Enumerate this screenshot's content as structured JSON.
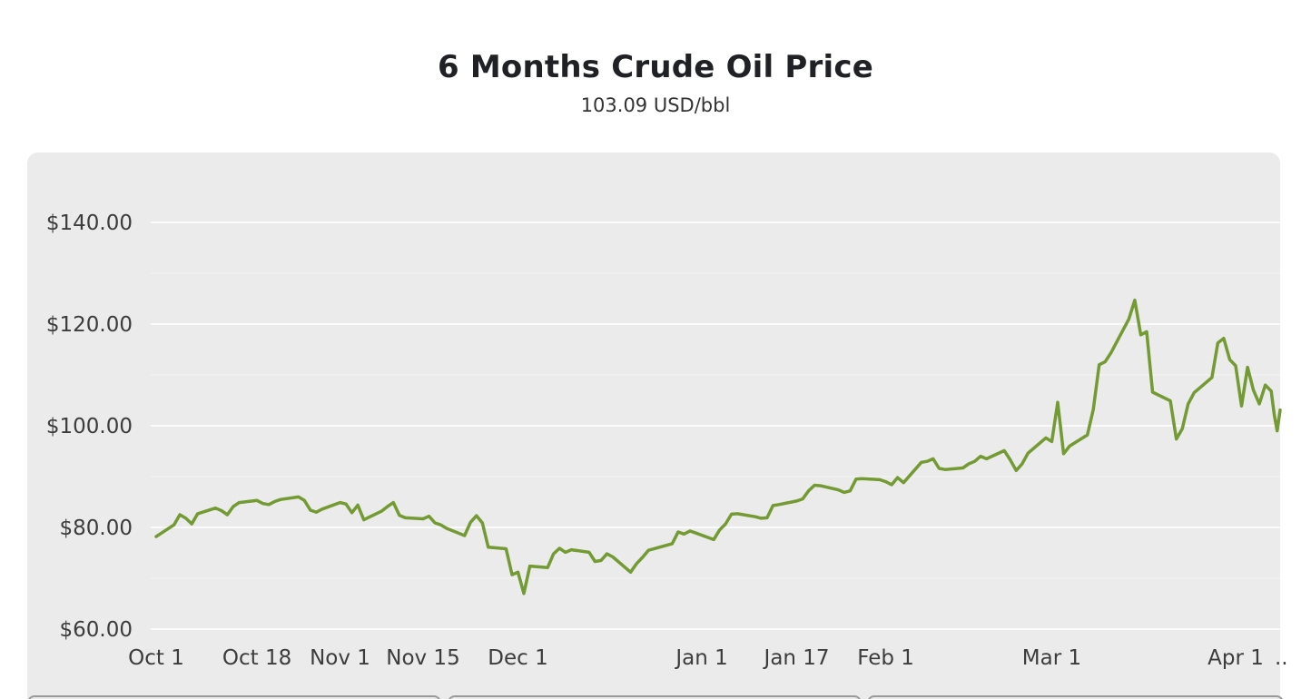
{
  "header": {
    "title": "6 Months Crude Oil Price",
    "subtitle": "103.09 USD/bbl"
  },
  "colors": {
    "line": "#739a33",
    "panel": "#ebebeb",
    "grid": "#ffffff"
  },
  "chart_data": {
    "type": "line",
    "title": "6 Months Crude Oil Price",
    "subtitle": "103.09 USD/bbl",
    "xlabel": "",
    "ylabel": "",
    "ylim": [
      60,
      140
    ],
    "xlim": [
      "2021-10-01",
      "2022-04-08"
    ],
    "y_ticks": [
      {
        "value": 60,
        "label": "$60.00"
      },
      {
        "value": 80,
        "label": "$80.00"
      },
      {
        "value": 100,
        "label": "$100.00"
      },
      {
        "value": 120,
        "label": "$120.00"
      },
      {
        "value": 140,
        "label": "$140.00"
      }
    ],
    "y_minor_gridlines": [
      70,
      90,
      110,
      130
    ],
    "x_ticks": [
      {
        "date": "2021-10-01",
        "label": "Oct 1"
      },
      {
        "date": "2021-10-18",
        "label": "Oct 18"
      },
      {
        "date": "2021-11-01",
        "label": "Nov 1"
      },
      {
        "date": "2021-11-15",
        "label": "Nov 15"
      },
      {
        "date": "2021-12-01",
        "label": "Dec 1"
      },
      {
        "date": "2022-01-01",
        "label": "Jan 1"
      },
      {
        "date": "2022-01-17",
        "label": "Jan 17"
      },
      {
        "date": "2022-02-01",
        "label": "Feb 1"
      },
      {
        "date": "2022-03-01",
        "label": "Mar 1"
      },
      {
        "date": "2022-04-01",
        "label": "Apr 1"
      },
      {
        "date": "2022-04-08",
        "label": ".."
      }
    ],
    "grid": true,
    "legend": "none",
    "series": [
      {
        "points": [
          [
            "2021-10-01",
            78.2
          ],
          [
            "2021-10-04",
            80.5
          ],
          [
            "2021-10-05",
            82.5
          ],
          [
            "2021-10-06",
            81.8
          ],
          [
            "2021-10-07",
            80.7
          ],
          [
            "2021-10-08",
            82.7
          ],
          [
            "2021-10-11",
            83.8
          ],
          [
            "2021-10-12",
            83.3
          ],
          [
            "2021-10-13",
            82.5
          ],
          [
            "2021-10-14",
            84.1
          ],
          [
            "2021-10-15",
            84.9
          ],
          [
            "2021-10-18",
            85.3
          ],
          [
            "2021-10-19",
            84.7
          ],
          [
            "2021-10-20",
            84.5
          ],
          [
            "2021-10-21",
            85.1
          ],
          [
            "2021-10-22",
            85.5
          ],
          [
            "2021-10-25",
            86.0
          ],
          [
            "2021-10-26",
            85.3
          ],
          [
            "2021-10-27",
            83.4
          ],
          [
            "2021-10-28",
            83.0
          ],
          [
            "2021-10-29",
            83.6
          ],
          [
            "2021-11-01",
            84.9
          ],
          [
            "2021-11-02",
            84.6
          ],
          [
            "2021-11-03",
            82.9
          ],
          [
            "2021-11-04",
            84.4
          ],
          [
            "2021-11-05",
            81.5
          ],
          [
            "2021-11-08",
            83.2
          ],
          [
            "2021-11-09",
            84.1
          ],
          [
            "2021-11-10",
            84.9
          ],
          [
            "2021-11-11",
            82.4
          ],
          [
            "2021-11-12",
            81.9
          ],
          [
            "2021-11-15",
            81.7
          ],
          [
            "2021-11-16",
            82.2
          ],
          [
            "2021-11-17",
            80.9
          ],
          [
            "2021-11-18",
            80.5
          ],
          [
            "2021-11-19",
            79.8
          ],
          [
            "2021-11-22",
            78.4
          ],
          [
            "2021-11-23",
            81.0
          ],
          [
            "2021-11-24",
            82.3
          ],
          [
            "2021-11-25",
            80.9
          ],
          [
            "2021-11-26",
            76.1
          ],
          [
            "2021-11-29",
            75.8
          ],
          [
            "2021-11-30",
            70.7
          ],
          [
            "2021-12-01",
            71.2
          ],
          [
            "2021-12-02",
            67.0
          ],
          [
            "2021-12-03",
            72.4
          ],
          [
            "2021-12-06",
            72.1
          ],
          [
            "2021-12-07",
            74.8
          ],
          [
            "2021-12-08",
            75.9
          ],
          [
            "2021-12-09",
            75.1
          ],
          [
            "2021-12-10",
            75.6
          ],
          [
            "2021-12-13",
            75.1
          ],
          [
            "2021-12-14",
            73.3
          ],
          [
            "2021-12-15",
            73.5
          ],
          [
            "2021-12-16",
            74.8
          ],
          [
            "2021-12-17",
            74.2
          ],
          [
            "2021-12-20",
            71.2
          ],
          [
            "2021-12-21",
            72.9
          ],
          [
            "2021-12-22",
            74.1
          ],
          [
            "2021-12-23",
            75.5
          ],
          [
            "2021-12-27",
            76.8
          ],
          [
            "2021-12-28",
            79.1
          ],
          [
            "2021-12-29",
            78.7
          ],
          [
            "2021-12-30",
            79.3
          ],
          [
            "2021-12-31",
            78.9
          ],
          [
            "2022-01-03",
            77.6
          ],
          [
            "2022-01-04",
            79.5
          ],
          [
            "2022-01-05",
            80.7
          ],
          [
            "2022-01-06",
            82.6
          ],
          [
            "2022-01-07",
            82.7
          ],
          [
            "2022-01-10",
            82.1
          ],
          [
            "2022-01-11",
            81.8
          ],
          [
            "2022-01-12",
            81.9
          ],
          [
            "2022-01-13",
            84.3
          ],
          [
            "2022-01-14",
            84.5
          ],
          [
            "2022-01-17",
            85.2
          ],
          [
            "2022-01-18",
            85.6
          ],
          [
            "2022-01-19",
            87.2
          ],
          [
            "2022-01-20",
            88.3
          ],
          [
            "2022-01-21",
            88.2
          ],
          [
            "2022-01-24",
            87.4
          ],
          [
            "2022-01-25",
            86.9
          ],
          [
            "2022-01-26",
            87.2
          ],
          [
            "2022-01-27",
            89.5
          ],
          [
            "2022-01-28",
            89.6
          ],
          [
            "2022-01-31",
            89.4
          ],
          [
            "2022-02-01",
            89.0
          ],
          [
            "2022-02-02",
            88.4
          ],
          [
            "2022-02-03",
            89.8
          ],
          [
            "2022-02-04",
            88.8
          ],
          [
            "2022-02-07",
            92.8
          ],
          [
            "2022-02-08",
            93.0
          ],
          [
            "2022-02-09",
            93.5
          ],
          [
            "2022-02-10",
            91.6
          ],
          [
            "2022-02-11",
            91.4
          ],
          [
            "2022-02-14",
            91.7
          ],
          [
            "2022-02-15",
            92.5
          ],
          [
            "2022-02-16",
            93.0
          ],
          [
            "2022-02-17",
            94.0
          ],
          [
            "2022-02-18",
            93.5
          ],
          [
            "2022-02-21",
            95.1
          ],
          [
            "2022-02-22",
            93.3
          ],
          [
            "2022-02-23",
            91.2
          ],
          [
            "2022-02-24",
            92.5
          ],
          [
            "2022-02-25",
            94.6
          ],
          [
            "2022-02-28",
            97.6
          ],
          [
            "2022-03-01",
            96.9
          ],
          [
            "2022-03-02",
            104.6
          ],
          [
            "2022-03-03",
            94.5
          ],
          [
            "2022-03-04",
            96.0
          ],
          [
            "2022-03-07",
            98.2
          ],
          [
            "2022-03-08",
            103.2
          ],
          [
            "2022-03-09",
            112.0
          ],
          [
            "2022-03-10",
            112.6
          ],
          [
            "2022-03-11",
            114.4
          ],
          [
            "2022-03-14",
            121.0
          ],
          [
            "2022-03-15",
            124.7
          ],
          [
            "2022-03-16",
            117.9
          ],
          [
            "2022-03-17",
            118.5
          ],
          [
            "2022-03-18",
            106.6
          ],
          [
            "2022-03-21",
            104.9
          ],
          [
            "2022-03-22",
            97.4
          ],
          [
            "2022-03-23",
            99.4
          ],
          [
            "2022-03-24",
            104.3
          ],
          [
            "2022-03-25",
            106.5
          ],
          [
            "2022-03-28",
            109.5
          ],
          [
            "2022-03-29",
            116.3
          ],
          [
            "2022-03-30",
            117.2
          ],
          [
            "2022-03-31",
            113.0
          ],
          [
            "2022-04-01",
            111.8
          ],
          [
            "2022-04-02",
            103.9
          ],
          [
            "2022-04-03",
            111.5
          ],
          [
            "2022-04-04",
            107.0
          ],
          [
            "2022-04-05",
            104.3
          ],
          [
            "2022-04-06",
            108.0
          ],
          [
            "2022-04-07",
            106.8
          ],
          [
            "2022-04-07T12:00",
            102.2
          ],
          [
            "2022-04-08",
            99.0
          ],
          [
            "2022-04-08T12:00",
            103.09
          ]
        ]
      }
    ]
  }
}
